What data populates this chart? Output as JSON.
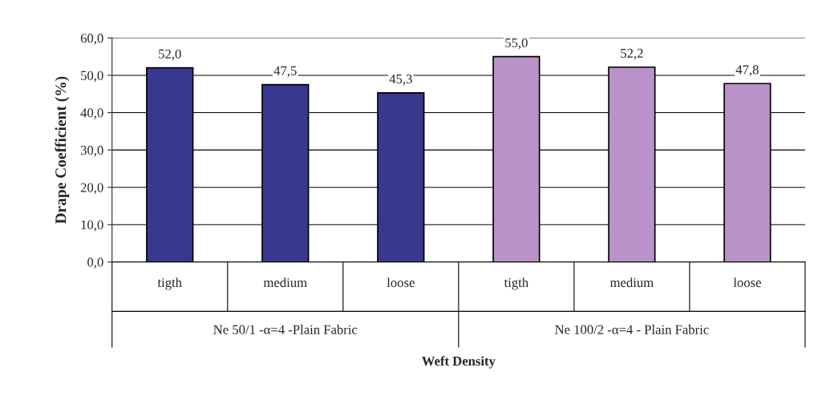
{
  "chart_data": {
    "type": "bar",
    "categories": [
      "tigth",
      "medium",
      "loose",
      "tigth",
      "medium",
      "loose"
    ],
    "values": [
      52.0,
      47.5,
      45.3,
      55.0,
      52.2,
      47.8
    ],
    "value_labels": [
      "52,0",
      "47,5",
      "45,3",
      "55,0",
      "52,2",
      "47,8"
    ],
    "colors": [
      "#38388f",
      "#38388f",
      "#38388f",
      "#b892c8",
      "#b892c8",
      "#b892c8"
    ],
    "ylabel": "Drape Coefficient (%)",
    "xlabel": "Weft Density",
    "annotations": [
      "Ne 50/1 -α=4 -Plain Fabric",
      "Ne 100/2 -α=4 - Plain Fabric"
    ],
    "ylim": [
      0,
      60
    ],
    "yticks": [
      {
        "value": 0,
        "label": "0,0"
      },
      {
        "value": 10,
        "label": "10,0"
      },
      {
        "value": 20,
        "label": "20,0"
      },
      {
        "value": 30,
        "label": "30,0"
      },
      {
        "value": 40,
        "label": "40,0"
      },
      {
        "value": 50,
        "label": "50,0"
      },
      {
        "value": 60,
        "label": "60,0"
      }
    ],
    "grid": "y",
    "legend": false
  }
}
